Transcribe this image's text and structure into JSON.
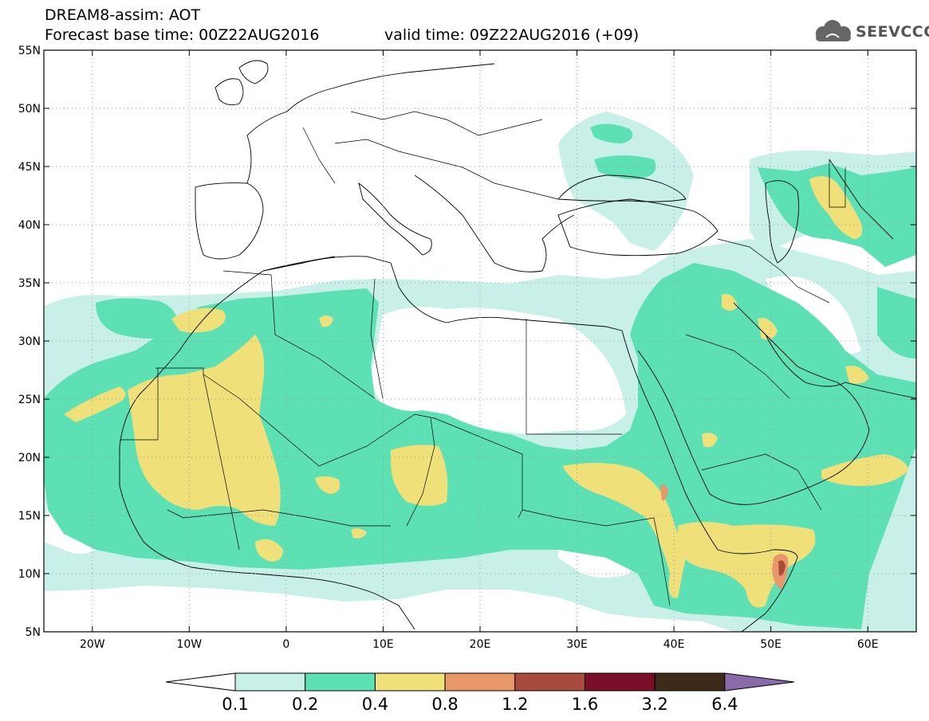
{
  "header": {
    "title": "DREAM8-assim: AOT",
    "base_time": "Forecast base time: 00Z22AUG2016",
    "valid_time": "valid time: 09Z22AUG2016 (+09)",
    "logo_text": "SEEVCCC",
    "logo_icon": "cloud-icon"
  },
  "map": {
    "projection": "lat-lon",
    "lon_range": [
      -25,
      65
    ],
    "lat_range": [
      5,
      55
    ],
    "lat_labels": [
      "55N",
      "50N",
      "45N",
      "40N",
      "35N",
      "30N",
      "25N",
      "20N",
      "15N",
      "10N",
      "5N"
    ],
    "lon_labels": [
      "20W",
      "10W",
      "0",
      "10E",
      "20E",
      "30E",
      "40E",
      "50E",
      "60E"
    ],
    "grid": "dotted"
  },
  "colorbar": {
    "labels": [
      "0.1",
      "0.2",
      "0.4",
      "0.8",
      "1.2",
      "1.6",
      "3.2",
      "6.4"
    ],
    "colors": [
      "#ffffff",
      "#c8f0e8",
      "#5ce0b4",
      "#f0e07a",
      "#e89868",
      "#a84a3c",
      "#7a0e28",
      "#3e2a18",
      "#8a6aa8"
    ]
  },
  "legend_colors": {
    "c01": "#c8f0e8",
    "c02": "#5ce0b4",
    "c04": "#f0e07a",
    "c08": "#e89868",
    "c12": "#a84a3c"
  }
}
